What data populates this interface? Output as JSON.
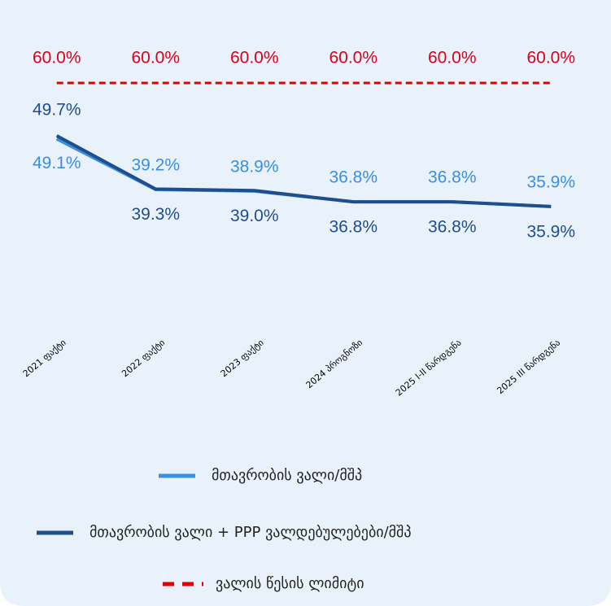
{
  "chart_data": {
    "type": "line",
    "categories": [
      "2021 ფაქტი",
      "2022 ფაქტი",
      "2023 ფაქტი",
      "2024 პროგნოზი",
      "2025 I-II წარდგენა",
      "2025 III წარდგენა"
    ],
    "series": [
      {
        "name": "მთავრობის ვალი/მშპ",
        "color": "#3a8fe0",
        "values": [
          49.1,
          39.2,
          38.9,
          36.8,
          36.8,
          35.9
        ],
        "value_labels": [
          "49.1%",
          "39.2%",
          "38.9%",
          "36.8%",
          "36.8%",
          "35.9%"
        ]
      },
      {
        "name": "მთავრობის ვალი + PPP ვალდებულებები/მშპ",
        "color": "#1f4e8c",
        "values": [
          49.7,
          39.3,
          39.0,
          36.8,
          36.8,
          35.9
        ],
        "value_labels": [
          "49.7%",
          "39.3%",
          "39.0%",
          "36.8%",
          "36.8%",
          "35.9%"
        ]
      },
      {
        "name": "ვალის წესის ლიმიტი",
        "color": "#e00000",
        "dashed": true,
        "values": [
          60,
          60,
          60,
          60,
          60,
          60
        ],
        "value_labels": [
          "60.0%",
          "60.0%",
          "60.0%",
          "60.0%",
          "60.0%",
          "60.0%"
        ]
      }
    ],
    "ylim": [
      0,
      70
    ]
  }
}
